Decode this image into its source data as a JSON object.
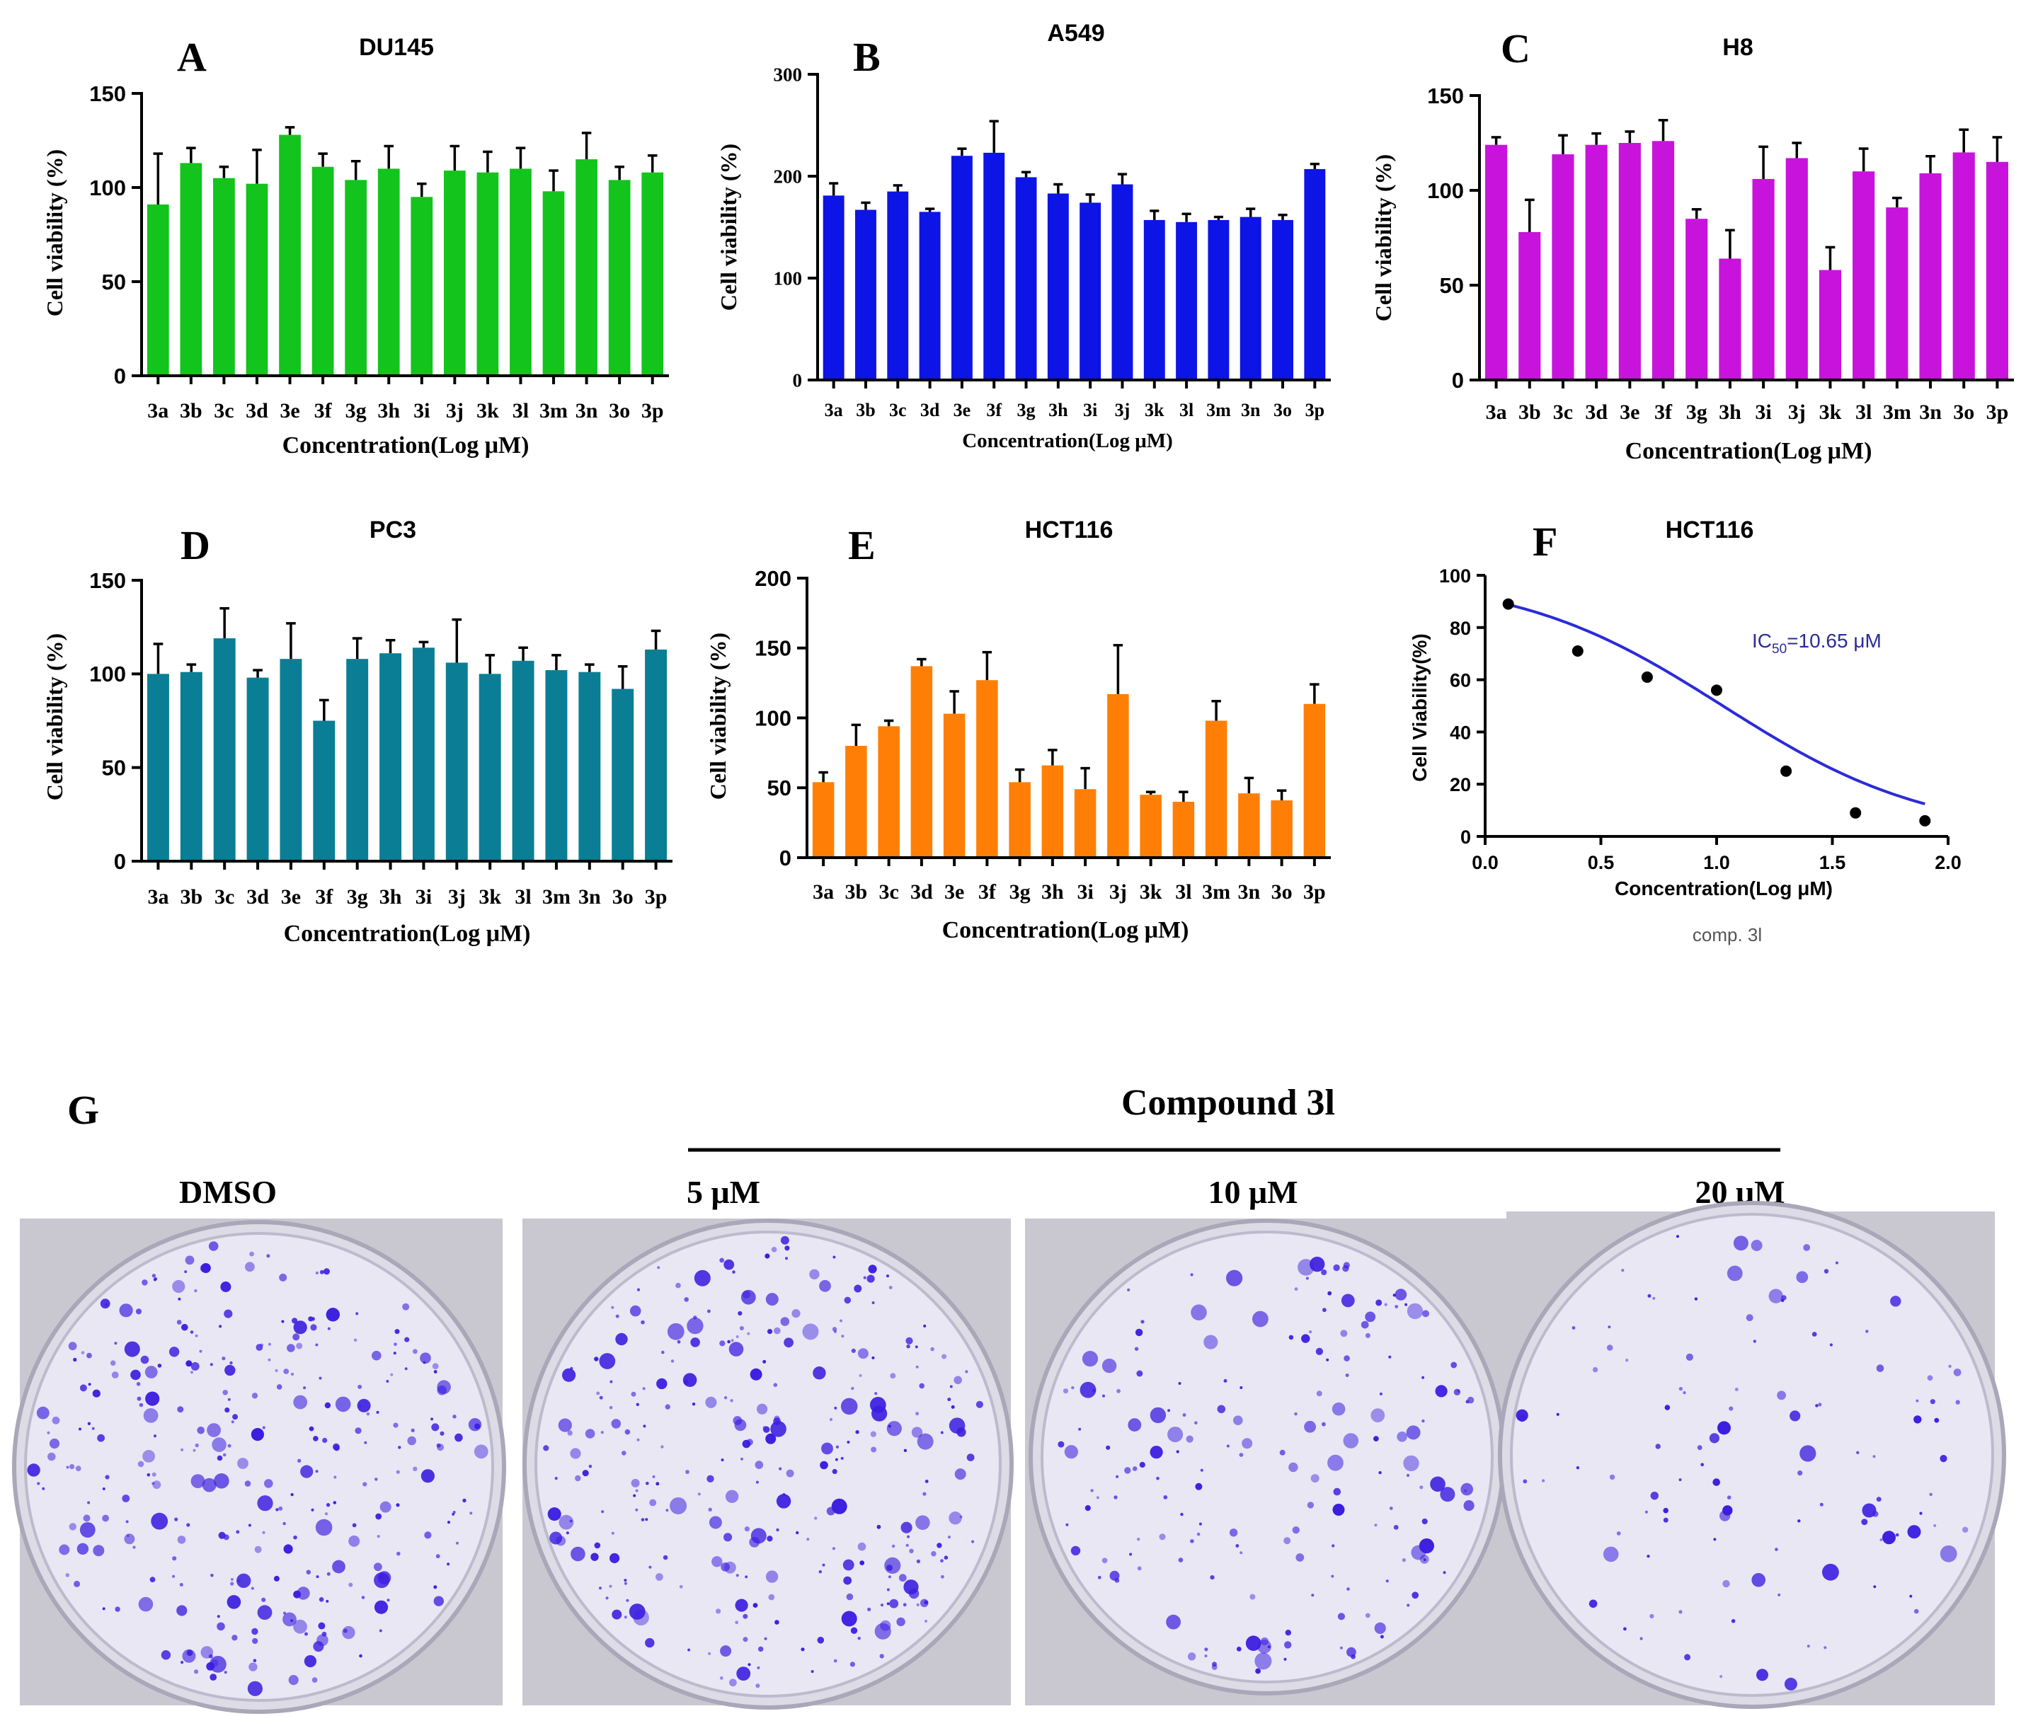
{
  "chart_data": [
    {
      "panel": "A",
      "type": "bar",
      "title": "DU145",
      "color": "#12c41c",
      "ylabel": "Cell viability (%)",
      "xlabel": "Concentration(Log μM)",
      "ylim": [
        0,
        150
      ],
      "yticks": [
        0,
        50,
        100,
        150
      ],
      "categories": [
        "3a",
        "3b",
        "3c",
        "3d",
        "3e",
        "3f",
        "3g",
        "3h",
        "3i",
        "3j",
        "3k",
        "3l",
        "3m",
        "3n",
        "3o",
        "3p"
      ],
      "values": [
        91,
        113,
        105,
        102,
        128,
        111,
        104,
        110,
        95,
        109,
        108,
        110,
        98,
        115,
        104,
        108
      ],
      "errors": [
        27,
        8,
        6,
        18,
        4,
        7,
        10,
        12,
        7,
        13,
        11,
        11,
        11,
        14,
        7,
        9
      ]
    },
    {
      "panel": "B",
      "type": "bar",
      "title": "A549",
      "color": "#0c14e6",
      "ylabel": "Cell viability (%)",
      "xlabel": "Concentration(Log μM)",
      "ylim": [
        0,
        300
      ],
      "yticks": [
        0,
        100,
        200,
        300
      ],
      "categories": [
        "3a",
        "3b",
        "3c",
        "3d",
        "3e",
        "3f",
        "3g",
        "3h",
        "3i",
        "3j",
        "3k",
        "3l",
        "3m",
        "3n",
        "3o",
        "3p"
      ],
      "values": [
        181,
        167,
        185,
        165,
        220,
        223,
        199,
        183,
        174,
        192,
        157,
        155,
        157,
        160,
        157,
        207
      ],
      "errors": [
        12,
        7,
        6,
        3,
        7,
        31,
        5,
        9,
        8,
        10,
        9,
        8,
        3,
        8,
        5,
        5
      ]
    },
    {
      "panel": "C",
      "type": "bar",
      "title": "H8",
      "color": "#c813dc",
      "ylabel": "Cell viability (%)",
      "xlabel": "Concentration(Log μM)",
      "ylim": [
        0,
        150
      ],
      "yticks": [
        0,
        50,
        100,
        150
      ],
      "categories": [
        "3a",
        "3b",
        "3c",
        "3d",
        "3e",
        "3f",
        "3g",
        "3h",
        "3i",
        "3j",
        "3k",
        "3l",
        "3m",
        "3n",
        "3o",
        "3p"
      ],
      "values": [
        124,
        78,
        119,
        124,
        125,
        126,
        85,
        64,
        106,
        117,
        58,
        110,
        91,
        109,
        120,
        115
      ],
      "errors": [
        4,
        17,
        10,
        6,
        6,
        11,
        5,
        15,
        17,
        8,
        12,
        12,
        5,
        9,
        12,
        13
      ]
    },
    {
      "panel": "D",
      "type": "bar",
      "title": "PC3",
      "color": "#0a7e94",
      "ylabel": "Cell viability (%)",
      "xlabel": "Concentration(Log μM)",
      "ylim": [
        0,
        150
      ],
      "yticks": [
        0,
        50,
        100,
        150
      ],
      "categories": [
        "3a",
        "3b",
        "3c",
        "3d",
        "3e",
        "3f",
        "3g",
        "3h",
        "3i",
        "3j",
        "3k",
        "3l",
        "3m",
        "3n",
        "3o",
        "3p"
      ],
      "values": [
        100,
        101,
        119,
        98,
        108,
        75,
        108,
        111,
        114,
        106,
        100,
        107,
        102,
        101,
        92,
        113
      ],
      "errors": [
        16,
        4,
        16,
        4,
        19,
        11,
        11,
        7,
        3,
        23,
        10,
        7,
        8,
        4,
        12,
        10
      ]
    },
    {
      "panel": "E",
      "type": "bar",
      "title": "HCT116",
      "color": "#ff7f06",
      "ylabel": "Cell viability (%)",
      "xlabel": "Concentration(Log μM)",
      "ylim": [
        0,
        200
      ],
      "yticks": [
        0,
        50,
        100,
        150,
        200
      ],
      "categories": [
        "3a",
        "3b",
        "3c",
        "3d",
        "3e",
        "3f",
        "3g",
        "3h",
        "3i",
        "3j",
        "3k",
        "3l",
        "3m",
        "3n",
        "3o",
        "3p"
      ],
      "values": [
        54,
        80,
        94,
        137,
        103,
        127,
        54,
        66,
        49,
        117,
        45,
        40,
        98,
        46,
        41,
        110
      ],
      "errors": [
        7,
        15,
        4,
        5,
        16,
        20,
        9,
        11,
        15,
        35,
        2,
        7,
        14,
        11,
        7,
        14
      ]
    },
    {
      "panel": "F",
      "type": "scatter",
      "title": "HCT116",
      "ylabel": "Cell Viability(%)",
      "xlabel": "Concentration(Log μM)",
      "xlim": [
        0.0,
        2.0
      ],
      "ylim": [
        0,
        100
      ],
      "xticks": [
        "0.0",
        "0.5",
        "1.0",
        "1.5",
        "2.0"
      ],
      "yticks": [
        "0",
        "20",
        "40",
        "60",
        "80",
        "100"
      ],
      "x": [
        0.1,
        0.4,
        0.7,
        1.0,
        1.3,
        1.6,
        1.9
      ],
      "y": [
        89,
        71,
        61,
        56,
        25,
        9,
        6
      ],
      "fit": {
        "type": "sigmoidal",
        "top": 100,
        "bottom": 0,
        "logIC50": 1.027,
        "hill": 0.97,
        "color": "#2b2bd9"
      },
      "annotation": {
        "prefix": "IC",
        "subscript": "50",
        "suffix": "=10.65 μM"
      },
      "caption": "comp. 3l"
    }
  ],
  "panel_g": {
    "letter": "G",
    "compound_label": "Compound 3l",
    "wells": [
      {
        "label": "DMSO",
        "colony_count": 310
      },
      {
        "label": "5 μM",
        "colony_count": 300
      },
      {
        "label": "10 μM",
        "colony_count": 180
      },
      {
        "label": "20 μM",
        "colony_count": 110
      }
    ],
    "colony_color": "#3b1ee0"
  }
}
